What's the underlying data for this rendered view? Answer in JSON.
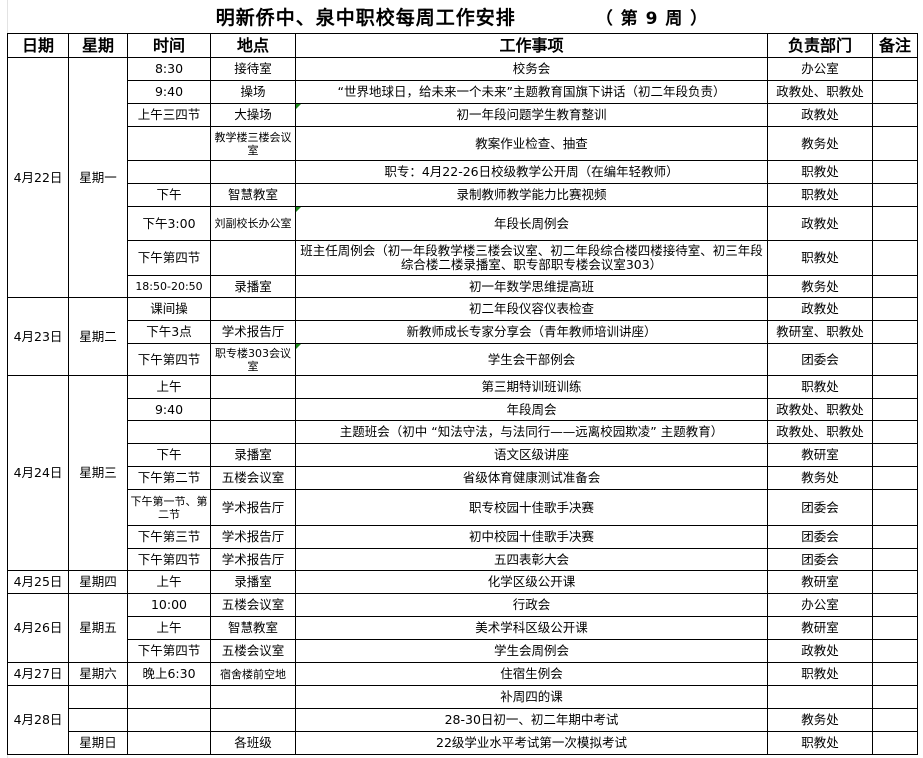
{
  "title": "明新侨中、泉中职校每周工作安排",
  "week_label": "（ 第 9 周 ）",
  "headers": [
    "日期",
    "星期",
    "时间",
    "地点",
    "工作事项",
    "负责部门",
    "备注"
  ],
  "days": [
    {
      "date": "4月22日",
      "weekday": "星期一",
      "rows": [
        {
          "time": "8:30",
          "place": "接待室",
          "task": "校务会",
          "dept": "办公室"
        },
        {
          "time": "9:40",
          "place": "操场",
          "task": "“世界地球日，给未来一个未来”主题教育国旗下讲话（初二年段负责）",
          "dept": "政教处、职教处"
        },
        {
          "time": "上午三四节",
          "place": "大操场",
          "task": "初一年段问题学生教育整训",
          "dept": "政教处",
          "flag": true
        },
        {
          "time": "",
          "place": "教学楼三楼会议室",
          "task": "教案作业检查、抽查",
          "dept": "教务处"
        },
        {
          "time": "",
          "place": "",
          "task": "职专：4月22-26日校级教学公开周（在编年轻教师）",
          "dept": "职教处"
        },
        {
          "time": "下午",
          "place": "智慧教室",
          "task": "录制教师教学能力比赛视频",
          "dept": "职教处"
        },
        {
          "time": "下午3:00",
          "place": "刘副校长办公室",
          "task": "年段长周例会",
          "dept": "政教处",
          "flag": true
        },
        {
          "time": "下午第四节",
          "place": "",
          "task": "班主任周例会（初一年段教学楼三楼会议室、初二年段综合楼四楼接待室、初三年段综合楼二楼录播室、职专部职专楼会议室303）",
          "dept": "职教处"
        },
        {
          "time": "18:50-20:50",
          "place": "录播室",
          "task": "初一年数学思维提高班",
          "dept": "教务处"
        }
      ]
    },
    {
      "date": "4月23日",
      "weekday": "星期二",
      "rows": [
        {
          "time": "课间操",
          "place": "",
          "task": "初二年段仪容仪表检查",
          "dept": "政教处"
        },
        {
          "time": "下午3点",
          "place": "学术报告厅",
          "task": "新教师成长专家分享会（青年教师培训讲座）",
          "dept": "教研室、职教处"
        },
        {
          "time": "下午第四节",
          "place": "职专楼303会议室",
          "task": "学生会干部例会",
          "dept": "团委会",
          "flag": true
        }
      ]
    },
    {
      "date": "4月24日",
      "weekday": "星期三",
      "rows": [
        {
          "time": "上午",
          "place": "",
          "task": "第三期特训班训练",
          "dept": "职教处"
        },
        {
          "time": "9:40",
          "place": "",
          "task": "年段周会",
          "dept": "政教处、职教处"
        },
        {
          "time": "",
          "place": "",
          "task": "主题班会（初中 “知法守法，与法同行——远离校园欺凌” 主题教育）",
          "dept": "政教处、职教处"
        },
        {
          "time": "下午",
          "place": "录播室",
          "task": "语文区级讲座",
          "dept": "教研室"
        },
        {
          "time": "下午第二节",
          "place": "五楼会议室",
          "task": "省级体育健康测试准备会",
          "dept": "教务处"
        },
        {
          "time": "下午第一节、第二节",
          "place": "学术报告厅",
          "task": "职专校园十佳歌手决赛",
          "dept": "团委会"
        },
        {
          "time": "下午第三节",
          "place": "学术报告厅",
          "task": "初中校园十佳歌手决赛",
          "dept": "团委会"
        },
        {
          "time": "下午第四节",
          "place": "学术报告厅",
          "task": "五四表彰大会",
          "dept": "团委会"
        }
      ]
    },
    {
      "date": "4月25日",
      "weekday": "星期四",
      "rows": [
        {
          "time": "上午",
          "place": "录播室",
          "task": "化学区级公开课",
          "dept": "教研室"
        }
      ]
    },
    {
      "date": "4月26日",
      "weekday": "星期五",
      "rows": [
        {
          "time": "10:00",
          "place": "五楼会议室",
          "task": "行政会",
          "dept": "办公室"
        },
        {
          "time": "上午",
          "place": "智慧教室",
          "task": "美术学科区级公开课",
          "dept": "教研室"
        },
        {
          "time": "下午第四节",
          "place": "五楼会议室",
          "task": "学生会周例会",
          "dept": "政教处"
        }
      ]
    },
    {
      "date": "4月27日",
      "weekday": "星期六",
      "rows": [
        {
          "time": "晚上6:30",
          "place": "宿舍楼前空地",
          "task": "住宿生例会",
          "dept": "职教处"
        }
      ]
    },
    {
      "date": "4月28日",
      "weekday": "",
      "rows": [
        {
          "weekday": "",
          "time": "",
          "place": "",
          "task": "补周四的课",
          "dept": ""
        },
        {
          "weekday": "",
          "time": "",
          "place": "",
          "task": "28-30日初一、初二年期中考试",
          "dept": "教务处"
        },
        {
          "weekday": "星期日",
          "time": "",
          "place": "各班级",
          "task": "22级学业水平考试第一次模拟考试",
          "dept": "职教处"
        }
      ]
    }
  ]
}
